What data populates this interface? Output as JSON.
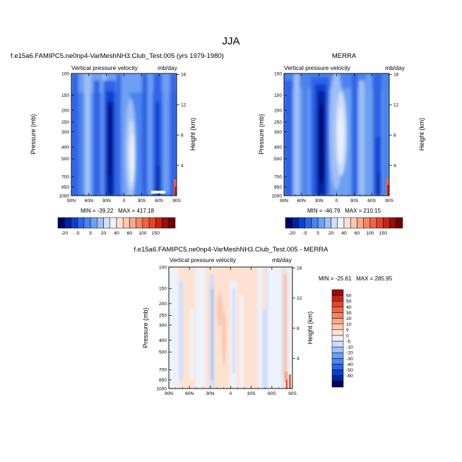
{
  "main_title": "JJA",
  "colors": {
    "model_obs_scale": [
      "#000066",
      "#002399",
      "#0a3fd1",
      "#2d64e6",
      "#4c83ee",
      "#6d9ff2",
      "#9fbff5",
      "#cfdef9",
      "#eef2fb",
      "#fde2d2",
      "#fbc8b0",
      "#f7a98a",
      "#f28665",
      "#ee6545",
      "#e3462b",
      "#c42615",
      "#9c0c08",
      "#6e0000"
    ],
    "diff_scale": [
      "#000066",
      "#002399",
      "#0a3fd1",
      "#2d64e6",
      "#4c83ee",
      "#6d9ff2",
      "#9fbff5",
      "#cfdef9",
      "#eef2fb",
      "#fde2d2",
      "#fbc8b0",
      "#f7a98a",
      "#f28665",
      "#ee6545",
      "#e3462b",
      "#c42615",
      "#9c0c08"
    ]
  },
  "chart_data": [
    {
      "type": "heatmap",
      "title": "f.e15a6.FAMIPC5.ne0np4-VarMeshNH3.Club_Test.005 (yrs 1979-1980)",
      "subtitle_left": "Vertical pressure velocity",
      "subtitle_right": "mb/day",
      "xlabel": "",
      "ylabel": "Pressure (mb)",
      "y2label": "Height (km)",
      "x_ticks": [
        "90N",
        "60N",
        "30N",
        "0",
        "30S",
        "60S",
        "90S"
      ],
      "y_ticks": [
        "100",
        "150",
        "200",
        "250",
        "300",
        "400",
        "500",
        "700",
        "850",
        "1000"
      ],
      "y2_ticks": [
        "16",
        "12",
        "8",
        "4"
      ],
      "y_scale": "log",
      "ylim": [
        1000,
        100
      ],
      "stats": "MIN = -39.22   MAX = 417.18",
      "colorbar_labels": [
        "-20",
        "-5",
        "5",
        "20",
        "40",
        "60",
        "100",
        "150"
      ]
    },
    {
      "type": "heatmap",
      "title": "MERRA",
      "subtitle_left": "Vertical pressure velocity",
      "subtitle_right": "mb/day",
      "xlabel": "",
      "ylabel": "Pressure (mb)",
      "y2label": "Height (km)",
      "x_ticks": [
        "90N",
        "60N",
        "30N",
        "0",
        "30S",
        "60S",
        "90S"
      ],
      "y_ticks": [
        "100",
        "150",
        "200",
        "250",
        "300",
        "400",
        "500",
        "700",
        "850",
        "1000"
      ],
      "y2_ticks": [
        "16",
        "12",
        "8",
        "4"
      ],
      "y_scale": "log",
      "ylim": [
        1000,
        100
      ],
      "stats": "MIN = -46.79   MAX = 210.15",
      "colorbar_labels": [
        "-20",
        "-5",
        "5",
        "20",
        "40",
        "60",
        "100",
        "150"
      ]
    },
    {
      "type": "heatmap",
      "title": "f.e15a6.FAMIPC5.ne0np4-VarMeshNH3.Club_Test.005 - MERRA",
      "subtitle_left": "Vertical pressure velocity",
      "subtitle_right": "mb/day",
      "xlabel": "",
      "ylabel": "Pressure (mb)",
      "y2label": "Height (km)",
      "x_ticks": [
        "90N",
        "60N",
        "30N",
        "0",
        "30S",
        "60S",
        "90S"
      ],
      "y_ticks": [
        "100",
        "150",
        "200",
        "250",
        "300",
        "400",
        "500",
        "700",
        "850",
        "1000"
      ],
      "y2_ticks": [
        "16",
        "12",
        "8",
        "4"
      ],
      "y_scale": "log",
      "ylim": [
        1000,
        100
      ],
      "stats": "MIN = -25.61   MAX = 285.95",
      "colorbar_labels": [
        "60",
        "50",
        "40",
        "30",
        "20",
        "10",
        "5",
        "0",
        "-5",
        "-10",
        "-20",
        "-30",
        "-40",
        "-50",
        "-60"
      ]
    }
  ]
}
